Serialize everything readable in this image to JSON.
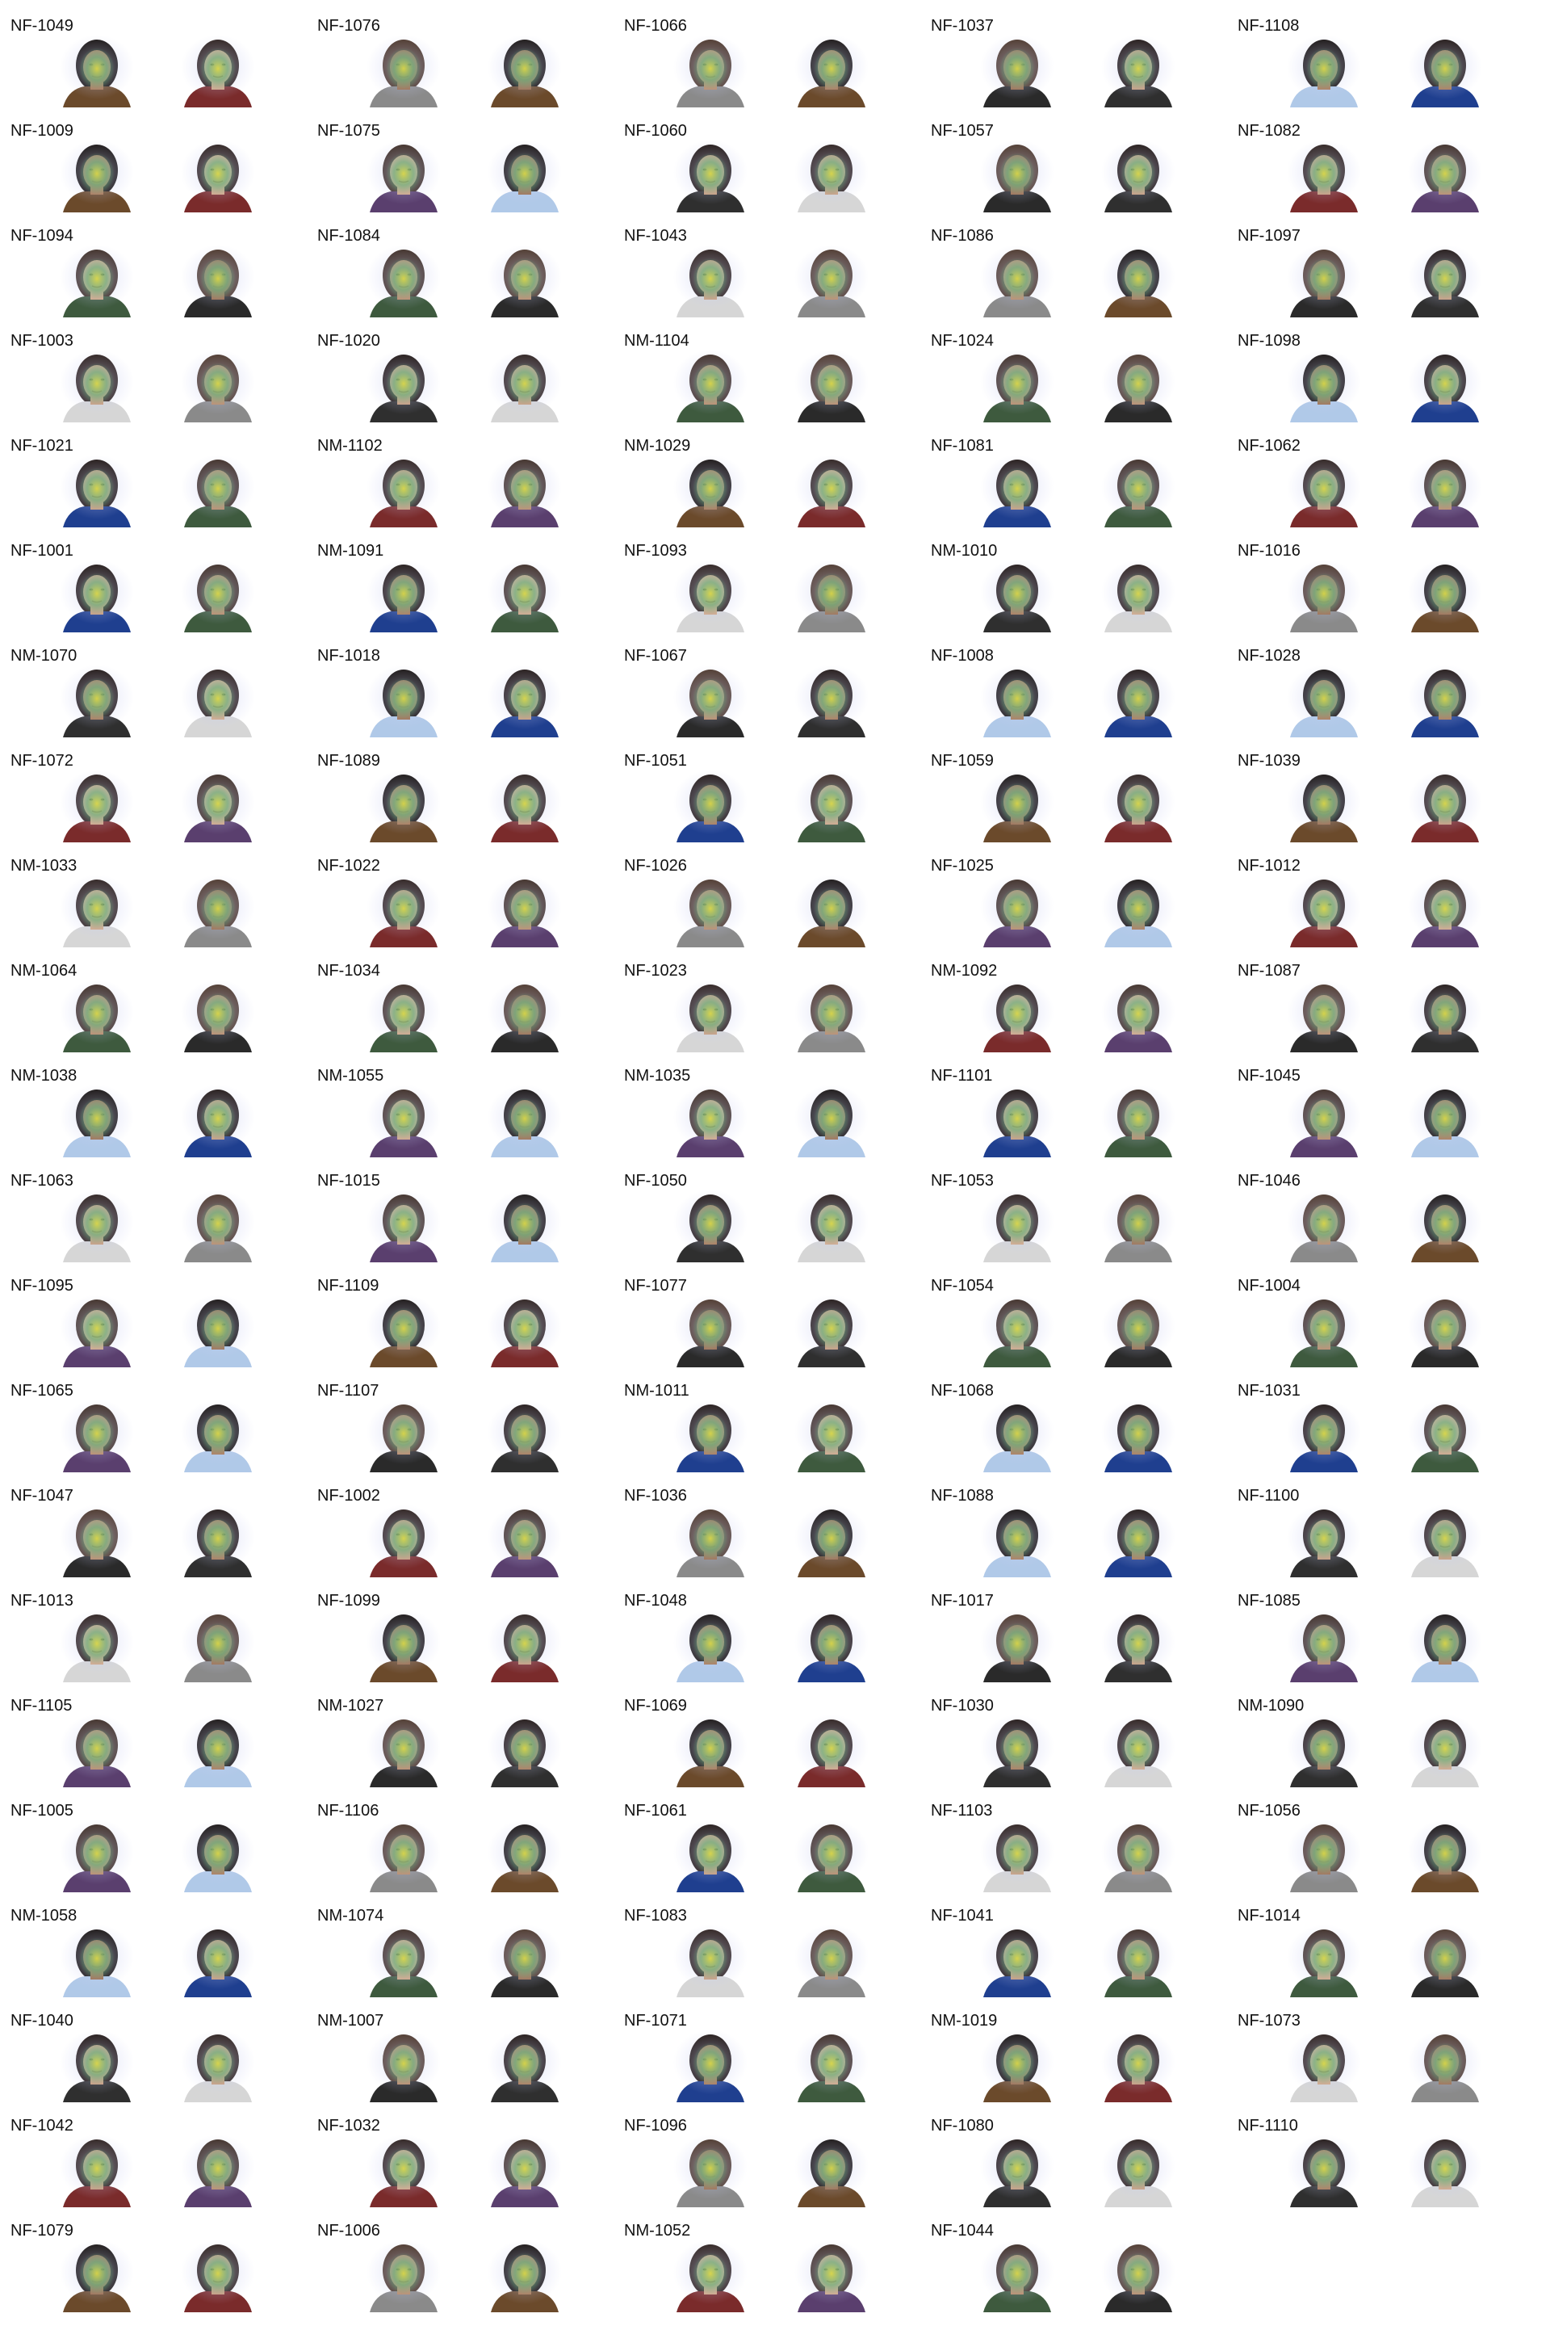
{
  "faces": [
    "NF-1049",
    "NF-1076",
    "NF-1066",
    "NF-1037",
    "NF-1108",
    "NF-1009",
    "NF-1075",
    "NF-1060",
    "NF-1057",
    "NF-1082",
    "NF-1094",
    "NF-1084",
    "NF-1043",
    "NF-1086",
    "NF-1097",
    "NF-1003",
    "NF-1020",
    "NM-1104",
    "NF-1024",
    "NF-1098",
    "NF-1021",
    "NM-1102",
    "NM-1029",
    "NF-1081",
    "NF-1062",
    "NF-1001",
    "NM-1091",
    "NF-1093",
    "NM-1010",
    "NF-1016",
    "NM-1070",
    "NF-1018",
    "NF-1067",
    "NF-1008",
    "NF-1028",
    "NF-1072",
    "NF-1089",
    "NF-1051",
    "NF-1059",
    "NF-1039",
    "NM-1033",
    "NF-1022",
    "NF-1026",
    "NF-1025",
    "NF-1012",
    "NM-1064",
    "NF-1034",
    "NF-1023",
    "NM-1092",
    "NF-1087",
    "NM-1038",
    "NM-1055",
    "NM-1035",
    "NF-1101",
    "NF-1045",
    "NF-1063",
    "NF-1015",
    "NF-1050",
    "NF-1053",
    "NF-1046",
    "NF-1095",
    "NF-1109",
    "NF-1077",
    "NF-1054",
    "NF-1004",
    "NF-1065",
    "NF-1107",
    "NM-1011",
    "NF-1068",
    "NF-1031",
    "NF-1047",
    "NF-1002",
    "NF-1036",
    "NF-1088",
    "NF-1100",
    "NF-1013",
    "NF-1099",
    "NF-1048",
    "NF-1017",
    "NF-1085",
    "NF-1105",
    "NM-1027",
    "NF-1069",
    "NF-1030",
    "NM-1090",
    "NF-1005",
    "NF-1106",
    "NF-1061",
    "NF-1103",
    "NF-1056",
    "NM-1058",
    "NM-1074",
    "NF-1083",
    "NF-1041",
    "NF-1014",
    "NF-1040",
    "NM-1007",
    "NF-1071",
    "NM-1019",
    "NF-1073",
    "NF-1042",
    "NF-1032",
    "NF-1096",
    "NF-1080",
    "NF-1110",
    "NF-1079",
    "NF-1006",
    "NM-1052",
    "NF-1044"
  ],
  "colors": {
    "label_text": "#111111",
    "background": "#ffffff",
    "heatmap_outer": "#c9cdf2",
    "heatmap_mid": "#5fae6e",
    "heatmap_hot": "#d9d93a",
    "skin": "#b98862",
    "hair": "#2a1d18",
    "shirt": "#3a3a3a"
  }
}
